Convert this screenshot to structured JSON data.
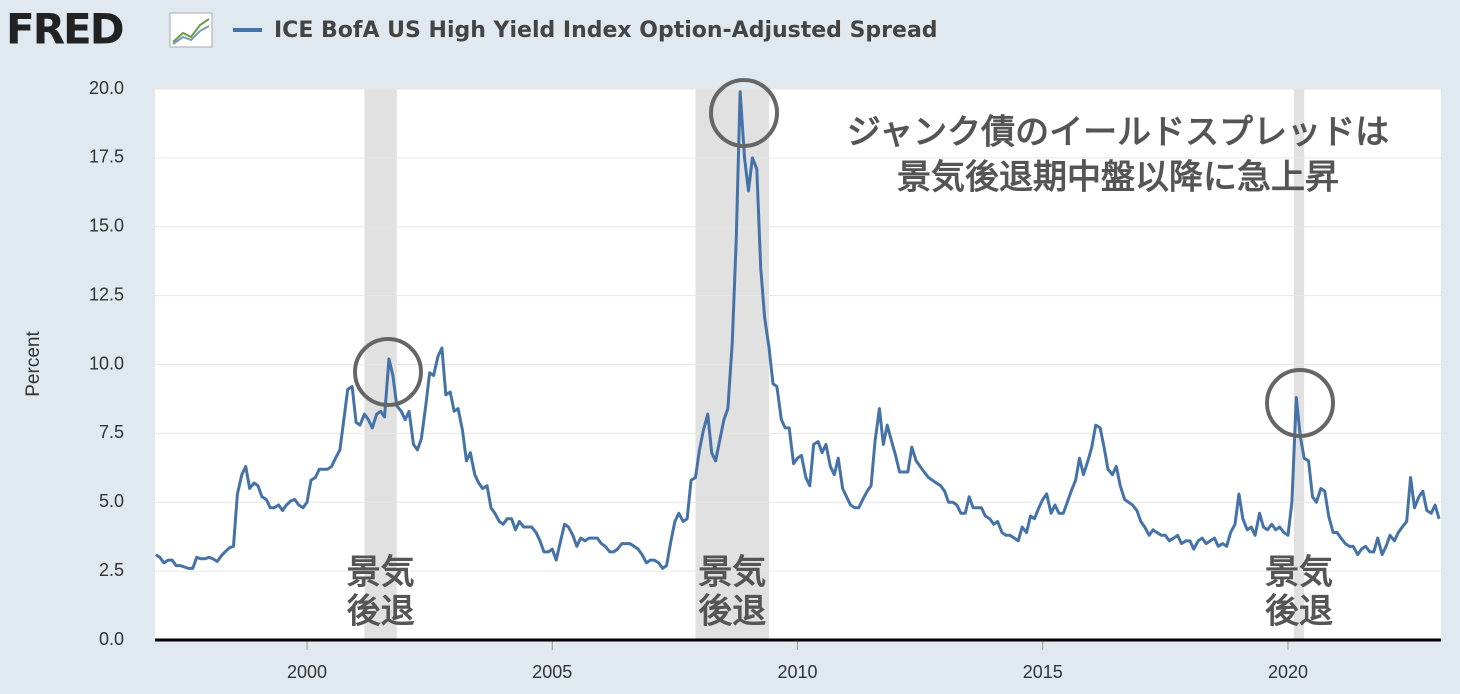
{
  "logo": "FRED",
  "chart_data": {
    "type": "line",
    "y_label": "Percent",
    "annotation": [
      "ジャンク債のイールドスプレッドは",
      "景気後退期中盤以降に急上昇"
    ],
    "recession_label": [
      "景気",
      "後退"
    ],
    "recessions": [
      [
        2001.17,
        2001.83
      ],
      [
        2007.92,
        2009.42
      ],
      [
        2020.12,
        2020.33
      ]
    ],
    "xlim": [
      1996.9,
      2023.12
    ],
    "xticks": [
      2000,
      2005,
      2010,
      2015,
      2020
    ],
    "ylim": [
      0,
      20
    ],
    "yticks": [
      {
        "value": 0,
        "label": "0.0"
      },
      {
        "value": 2.5,
        "label": "2.5"
      },
      {
        "value": 5,
        "label": "5.0"
      },
      {
        "value": 7.5,
        "label": "7.5"
      },
      {
        "value": 10,
        "label": "10.0"
      },
      {
        "value": 12.5,
        "label": "12.5"
      },
      {
        "value": 15,
        "label": "15.0"
      },
      {
        "value": 17.5,
        "label": "17.5"
      },
      {
        "value": 20,
        "label": "20.0"
      }
    ],
    "grid": true,
    "x": [
      1996.92,
      1997.0,
      1997.08,
      1997.17,
      1997.25,
      1997.33,
      1997.42,
      1997.5,
      1997.58,
      1997.67,
      1997.75,
      1997.83,
      1997.92,
      1998.0,
      1998.08,
      1998.17,
      1998.25,
      1998.33,
      1998.42,
      1998.5,
      1998.58,
      1998.67,
      1998.75,
      1998.83,
      1998.92,
      1999.0,
      1999.08,
      1999.17,
      1999.25,
      1999.33,
      1999.42,
      1999.5,
      1999.58,
      1999.67,
      1999.75,
      1999.83,
      1999.92,
      2000.0,
      2000.08,
      2000.17,
      2000.25,
      2000.33,
      2000.42,
      2000.5,
      2000.58,
      2000.67,
      2000.75,
      2000.83,
      2000.92,
      2001.0,
      2001.08,
      2001.17,
      2001.25,
      2001.33,
      2001.42,
      2001.5,
      2001.58,
      2001.67,
      2001.75,
      2001.83,
      2001.92,
      2002.0,
      2002.08,
      2002.17,
      2002.25,
      2002.33,
      2002.42,
      2002.5,
      2002.58,
      2002.67,
      2002.75,
      2002.83,
      2002.92,
      2003.0,
      2003.08,
      2003.17,
      2003.25,
      2003.33,
      2003.42,
      2003.5,
      2003.58,
      2003.67,
      2003.75,
      2003.83,
      2003.92,
      2004.0,
      2004.08,
      2004.17,
      2004.25,
      2004.33,
      2004.42,
      2004.5,
      2004.58,
      2004.67,
      2004.75,
      2004.83,
      2004.92,
      2005.0,
      2005.08,
      2005.17,
      2005.25,
      2005.33,
      2005.42,
      2005.5,
      2005.58,
      2005.67,
      2005.75,
      2005.83,
      2005.92,
      2006.0,
      2006.08,
      2006.17,
      2006.25,
      2006.33,
      2006.42,
      2006.5,
      2006.58,
      2006.67,
      2006.75,
      2006.83,
      2006.92,
      2007.0,
      2007.08,
      2007.17,
      2007.25,
      2007.33,
      2007.42,
      2007.5,
      2007.58,
      2007.67,
      2007.75,
      2007.83,
      2007.92,
      2008.0,
      2008.08,
      2008.17,
      2008.25,
      2008.33,
      2008.42,
      2008.5,
      2008.58,
      2008.67,
      2008.75,
      2008.83,
      2008.92,
      2009.0,
      2009.08,
      2009.17,
      2009.25,
      2009.33,
      2009.42,
      2009.5,
      2009.58,
      2009.67,
      2009.75,
      2009.83,
      2009.92,
      2010.0,
      2010.08,
      2010.17,
      2010.25,
      2010.33,
      2010.42,
      2010.5,
      2010.58,
      2010.67,
      2010.75,
      2010.83,
      2010.92,
      2011.0,
      2011.08,
      2011.17,
      2011.25,
      2011.33,
      2011.42,
      2011.5,
      2011.58,
      2011.67,
      2011.75,
      2011.83,
      2011.92,
      2012.0,
      2012.08,
      2012.17,
      2012.25,
      2012.33,
      2012.42,
      2012.5,
      2012.58,
      2012.67,
      2012.75,
      2012.83,
      2012.92,
      2013.0,
      2013.08,
      2013.17,
      2013.25,
      2013.33,
      2013.42,
      2013.5,
      2013.58,
      2013.67,
      2013.75,
      2013.83,
      2013.92,
      2014.0,
      2014.08,
      2014.17,
      2014.25,
      2014.33,
      2014.42,
      2014.5,
      2014.58,
      2014.67,
      2014.75,
      2014.83,
      2014.92,
      2015.0,
      2015.08,
      2015.17,
      2015.25,
      2015.33,
      2015.42,
      2015.5,
      2015.58,
      2015.67,
      2015.75,
      2015.83,
      2015.92,
      2016.0,
      2016.08,
      2016.17,
      2016.25,
      2016.33,
      2016.42,
      2016.5,
      2016.58,
      2016.67,
      2016.75,
      2016.83,
      2016.92,
      2017.0,
      2017.08,
      2017.17,
      2017.25,
      2017.33,
      2017.42,
      2017.5,
      2017.58,
      2017.67,
      2017.75,
      2017.83,
      2017.92,
      2018.0,
      2018.08,
      2018.17,
      2018.25,
      2018.33,
      2018.42,
      2018.5,
      2018.58,
      2018.67,
      2018.75,
      2018.83,
      2018.92,
      2019.0,
      2019.08,
      2019.17,
      2019.25,
      2019.33,
      2019.42,
      2019.5,
      2019.58,
      2019.67,
      2019.75,
      2019.83,
      2019.92,
      2020.0,
      2020.08,
      2020.17,
      2020.25,
      2020.33,
      2020.42,
      2020.5,
      2020.58,
      2020.67,
      2020.75,
      2020.83,
      2020.92,
      2021.0,
      2021.08,
      2021.17,
      2021.25,
      2021.33,
      2021.42,
      2021.5,
      2021.58,
      2021.67,
      2021.75,
      2021.83,
      2021.92,
      2022.0,
      2022.08,
      2022.17,
      2022.25,
      2022.33,
      2022.42,
      2022.5,
      2022.58,
      2022.67,
      2022.75,
      2022.83,
      2022.92,
      2023.0,
      2023.08
    ],
    "series": [
      {
        "name": "ICE BofA US High Yield Index Option-Adjusted Spread",
        "color": "#4572a7",
        "values": [
          3.1,
          3.0,
          2.8,
          2.9,
          2.9,
          2.7,
          2.7,
          2.65,
          2.6,
          2.6,
          3.0,
          2.95,
          2.95,
          3.0,
          2.95,
          2.85,
          3.05,
          3.2,
          3.35,
          3.4,
          5.3,
          6.0,
          6.3,
          5.5,
          5.7,
          5.6,
          5.2,
          5.1,
          4.8,
          4.8,
          4.9,
          4.7,
          4.9,
          5.05,
          5.1,
          4.9,
          4.8,
          5.0,
          5.8,
          5.9,
          6.2,
          6.2,
          6.2,
          6.3,
          6.6,
          6.9,
          8.0,
          9.1,
          9.2,
          7.9,
          7.8,
          8.2,
          8.0,
          7.7,
          8.2,
          8.3,
          8.1,
          10.2,
          9.6,
          8.5,
          8.3,
          8.0,
          8.3,
          7.1,
          6.9,
          7.3,
          8.5,
          9.7,
          9.6,
          10.3,
          10.6,
          8.9,
          9.0,
          8.3,
          8.4,
          7.6,
          6.5,
          6.8,
          6.0,
          5.7,
          5.5,
          5.6,
          4.8,
          4.6,
          4.3,
          4.2,
          4.4,
          4.4,
          4.0,
          4.3,
          4.1,
          4.1,
          4.1,
          3.9,
          3.6,
          3.2,
          3.2,
          3.3,
          2.9,
          3.6,
          4.2,
          4.1,
          3.8,
          3.4,
          3.7,
          3.6,
          3.7,
          3.7,
          3.7,
          3.5,
          3.4,
          3.2,
          3.2,
          3.3,
          3.5,
          3.5,
          3.5,
          3.4,
          3.3,
          3.1,
          2.8,
          2.9,
          2.9,
          2.8,
          2.6,
          2.7,
          3.6,
          4.3,
          4.6,
          4.3,
          4.4,
          5.8,
          5.9,
          6.9,
          7.6,
          8.2,
          6.8,
          6.5,
          7.3,
          8.0,
          8.4,
          10.8,
          14.5,
          19.9,
          17.5,
          16.3,
          17.5,
          17.1,
          13.5,
          11.7,
          10.6,
          9.3,
          9.2,
          8.0,
          7.7,
          7.7,
          6.4,
          6.6,
          6.7,
          5.9,
          5.6,
          7.1,
          7.2,
          6.8,
          7.1,
          6.3,
          6.0,
          6.6,
          5.5,
          5.2,
          4.9,
          4.8,
          4.8,
          5.1,
          5.4,
          5.6,
          7.2,
          8.4,
          7.1,
          7.8,
          7.2,
          6.7,
          6.1,
          6.1,
          6.1,
          7.0,
          6.5,
          6.3,
          6.1,
          5.9,
          5.8,
          5.7,
          5.6,
          5.4,
          5.0,
          5.0,
          4.9,
          4.6,
          4.6,
          5.2,
          4.8,
          4.8,
          4.8,
          4.5,
          4.4,
          4.2,
          4.3,
          3.9,
          3.8,
          3.8,
          3.7,
          3.6,
          4.1,
          3.9,
          4.5,
          4.4,
          4.8,
          5.1,
          5.3,
          4.6,
          4.9,
          4.6,
          4.6,
          5.0,
          5.4,
          5.8,
          6.6,
          6.0,
          6.5,
          7.0,
          7.8,
          7.7,
          7.0,
          6.2,
          6.0,
          6.3,
          5.6,
          5.1,
          5.0,
          4.9,
          4.7,
          4.3,
          4.1,
          3.8,
          4.0,
          3.9,
          3.8,
          3.8,
          3.6,
          3.7,
          3.8,
          3.5,
          3.6,
          3.6,
          3.3,
          3.6,
          3.7,
          3.5,
          3.6,
          3.7,
          3.4,
          3.5,
          3.4,
          3.9,
          4.2,
          5.3,
          4.4,
          4.0,
          4.1,
          3.8,
          4.6,
          4.1,
          4.0,
          4.2,
          4.0,
          4.1,
          3.9,
          3.8,
          5.0,
          8.8,
          7.4,
          6.6,
          6.5,
          5.2,
          5.0,
          5.5,
          5.4,
          4.5,
          3.9,
          3.9,
          3.7,
          3.5,
          3.4,
          3.4,
          3.1,
          3.3,
          3.4,
          3.2,
          3.2,
          3.7,
          3.1,
          3.4,
          3.8,
          3.6,
          3.9,
          4.1,
          4.3,
          5.9,
          4.8,
          5.2,
          5.4,
          4.7,
          4.6,
          4.9,
          4.4
        ]
      }
    ]
  }
}
